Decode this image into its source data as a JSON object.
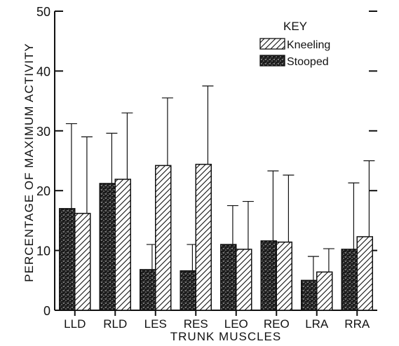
{
  "chart_data": {
    "type": "bar",
    "categories": [
      "LLD",
      "RLD",
      "LES",
      "RES",
      "LEO",
      "REO",
      "LRA",
      "RRA"
    ],
    "series": [
      {
        "name": "Stooped",
        "values": [
          17.0,
          21.2,
          6.8,
          6.6,
          11.0,
          11.6,
          5.0,
          10.2
        ],
        "error_upper": [
          31.2,
          29.6,
          11.0,
          11.0,
          17.5,
          23.3,
          9.0,
          21.3
        ]
      },
      {
        "name": "Kneeling",
        "values": [
          16.2,
          21.9,
          24.2,
          24.4,
          10.2,
          11.4,
          6.4,
          12.3
        ],
        "error_upper": [
          29.0,
          33.0,
          35.5,
          37.5,
          18.2,
          22.6,
          10.3,
          25.0
        ]
      }
    ],
    "xlabel": "TRUNK MUSCLES",
    "ylabel": "PERCENTAGE OF MAXIMUM ACTIVITY",
    "ylim": [
      0,
      50
    ],
    "yticks": [
      0,
      10,
      20,
      30,
      40,
      50
    ],
    "legend": {
      "title": "KEY",
      "position": "top-right"
    },
    "grid": false
  }
}
